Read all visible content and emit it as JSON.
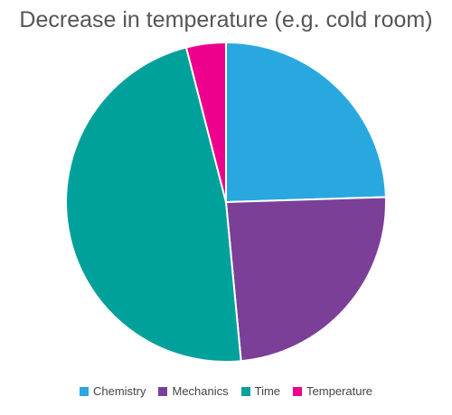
{
  "chart_data": {
    "type": "pie",
    "title": "Decrease in temperature (e.g. cold room)",
    "legend_position": "bottom",
    "slices": [
      {
        "label": "Chemistry",
        "value": 24.5,
        "color": "#29a8e0"
      },
      {
        "label": "Mechanics",
        "value": 24.0,
        "color": "#7b3f98"
      },
      {
        "label": "Time",
        "value": 47.5,
        "color": "#00a19a"
      },
      {
        "label": "Temperature",
        "value": 4.0,
        "color": "#ec008c"
      }
    ]
  }
}
